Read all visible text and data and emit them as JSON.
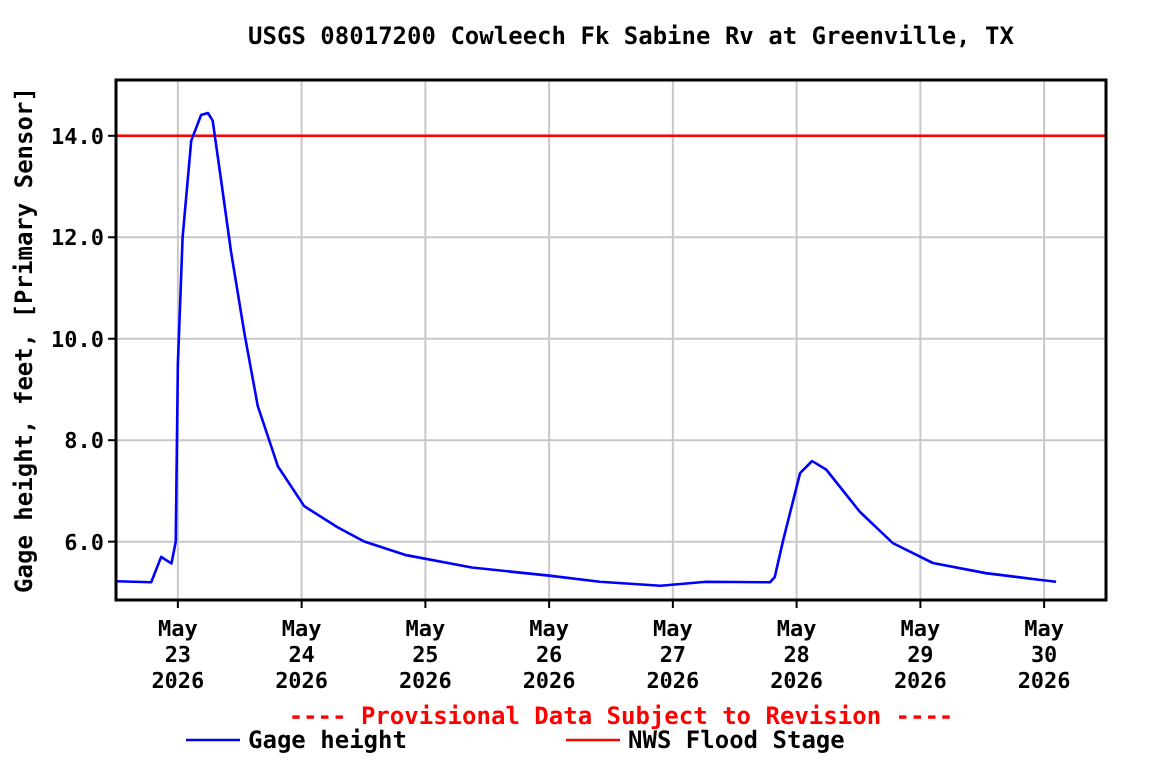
{
  "chart_data": {
    "type": "line",
    "title": "USGS 08017200 Cowleech Fk Sabine Rv at Greenville, TX",
    "ylabel": "Gage height, feet, [Primary Sensor]",
    "annotations": [
      "---- Provisional Data Subject to Revision ----"
    ],
    "series": [
      {
        "name": "Gage height",
        "color": "#0000ff",
        "x": [
          "2026-05-22T12:00",
          "2026-05-22T18:50",
          "2026-05-22T20:45",
          "2026-05-22T22:45",
          "2026-05-22T23:35",
          "2026-05-23T00:00",
          "2026-05-23T00:55",
          "2026-05-23T02:35",
          "2026-05-23T04:30",
          "2026-05-23T05:50",
          "2026-05-23T06:45",
          "2026-05-23T08:25",
          "2026-05-23T10:20",
          "2026-05-23T12:55",
          "2026-05-23T15:30",
          "2026-05-23T19:25",
          "2026-05-24T00:30",
          "2026-05-24T07:00",
          "2026-05-24T12:00",
          "2026-05-24T20:00",
          "2026-05-25T09:00",
          "2026-05-26T00:00",
          "2026-05-26T09:50",
          "2026-05-26T21:35",
          "2026-05-27T06:30",
          "2026-05-27T18:50",
          "2026-05-27T19:45",
          "2026-05-27T21:25",
          "2026-05-28T00:40",
          "2026-05-28T03:00",
          "2026-05-28T05:45",
          "2026-05-28T12:15",
          "2026-05-28T18:40",
          "2026-05-29T02:25",
          "2026-05-29T12:40",
          "2026-05-29T23:00",
          "2026-05-30T02:20"
        ],
        "values": [
          5.22,
          5.2,
          5.7,
          5.57,
          6.0,
          9.5,
          12.0,
          13.9,
          14.41,
          14.45,
          14.3,
          13.1,
          11.7,
          10.1,
          8.67,
          7.48,
          6.7,
          6.28,
          6.01,
          5.74,
          5.49,
          5.33,
          5.21,
          5.13,
          5.21,
          5.2,
          5.3,
          6.04,
          7.35,
          7.59,
          7.42,
          6.59,
          5.97,
          5.58,
          5.38,
          5.25,
          5.21
        ]
      }
    ],
    "ref_lines": [
      {
        "axis": "y",
        "value": 14,
        "label": "NWS Flood Stage",
        "color": "#ff0000"
      }
    ],
    "xlim": [
      "2026-05-22T12:00",
      "2026-05-30T12:00"
    ],
    "xticks": [
      {
        "value": "2026-05-23",
        "label": "May 23 2026"
      },
      {
        "value": "2026-05-24",
        "label": "May 24 2026"
      },
      {
        "value": "2026-05-25",
        "label": "May 25 2026"
      },
      {
        "value": "2026-05-26",
        "label": "May 26 2026"
      },
      {
        "value": "2026-05-27",
        "label": "May 27 2026"
      },
      {
        "value": "2026-05-28",
        "label": "May 28 2026"
      },
      {
        "value": "2026-05-29",
        "label": "May 29 2026"
      },
      {
        "value": "2026-05-30",
        "label": "May 30 2026"
      }
    ],
    "ylim": [
      4.85,
      15.1
    ],
    "yticks": [
      {
        "value": 6,
        "label": "6.0"
      },
      {
        "value": 8,
        "label": "8.0"
      },
      {
        "value": 10,
        "label": "10.0"
      },
      {
        "value": 12,
        "label": "12.0"
      },
      {
        "value": 14,
        "label": "14.0"
      }
    ],
    "grid": true,
    "legend": "bottom",
    "marker": "none",
    "line_style": "solid"
  }
}
